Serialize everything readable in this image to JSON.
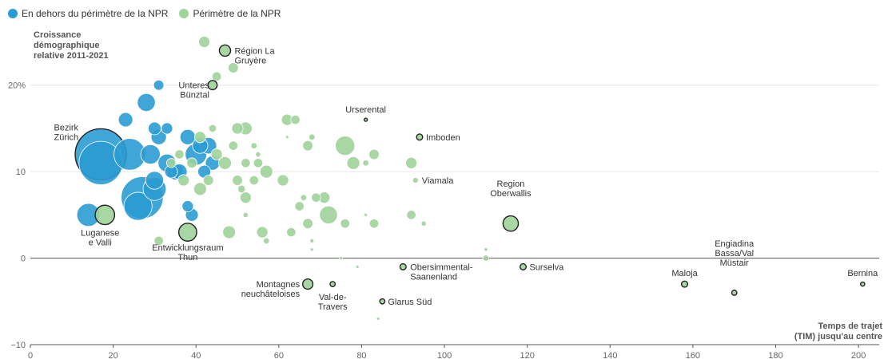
{
  "legend": {
    "outside": {
      "label": "En dehors du périmètre de la NPR",
      "color": "#2b9bd3"
    },
    "inside": {
      "label": "Périmètre de la NPR",
      "color": "#9ed39a"
    }
  },
  "colors": {
    "highlight_stroke": "#222222",
    "axis": "#555555",
    "grid": "#e6e6e6",
    "label": "#333333"
  },
  "chart_data": {
    "type": "scatter",
    "bubble": true,
    "ylabel": "Croissance démographique relative 2011-2021",
    "xlabel": "Temps de trajet (TIM) jusqu'au centre",
    "xlim": [
      0,
      205
    ],
    "ylim": [
      -10,
      28
    ],
    "xticks": [
      0,
      20,
      40,
      60,
      80,
      100,
      120,
      140,
      160,
      180,
      200
    ],
    "yticks": [
      {
        "value": 20,
        "label": "20%"
      },
      {
        "value": 10,
        "label": "10"
      },
      {
        "value": 0,
        "label": "0"
      },
      {
        "value": -10,
        "label": "−10"
      }
    ],
    "grid": "horizontal",
    "legend_position": "top-left",
    "series": [
      {
        "name": "En dehors du périmètre de la NPR",
        "color": "#2b9bd3",
        "points": [
          {
            "x": 17,
            "y": 12,
            "s": 1.0,
            "label": "Bezirk Zürich",
            "highlight": true
          },
          {
            "x": 17,
            "y": 11,
            "s": 0.85
          },
          {
            "x": 27,
            "y": 7,
            "s": 0.82
          },
          {
            "x": 24,
            "y": 12,
            "s": 0.62
          },
          {
            "x": 26,
            "y": 6,
            "s": 0.55
          },
          {
            "x": 14,
            "y": 5,
            "s": 0.45
          },
          {
            "x": 29,
            "y": 12,
            "s": 0.38
          },
          {
            "x": 30,
            "y": 8,
            "s": 0.45
          },
          {
            "x": 33,
            "y": 11,
            "s": 0.35
          },
          {
            "x": 35,
            "y": 10,
            "s": 0.32
          },
          {
            "x": 40,
            "y": 12,
            "s": 0.42
          },
          {
            "x": 36,
            "y": 10,
            "s": 0.3
          },
          {
            "x": 28,
            "y": 18,
            "s": 0.35
          },
          {
            "x": 23,
            "y": 16,
            "s": 0.28
          },
          {
            "x": 31,
            "y": 14,
            "s": 0.3
          },
          {
            "x": 30,
            "y": 15,
            "s": 0.25
          },
          {
            "x": 33,
            "y": 15,
            "s": 0.22
          },
          {
            "x": 31,
            "y": 20,
            "s": 0.2
          },
          {
            "x": 38,
            "y": 14,
            "s": 0.3
          },
          {
            "x": 41,
            "y": 13,
            "s": 0.3
          },
          {
            "x": 43,
            "y": 13,
            "s": 0.32
          },
          {
            "x": 44,
            "y": 11,
            "s": 0.28
          },
          {
            "x": 42,
            "y": 10,
            "s": 0.25
          },
          {
            "x": 34,
            "y": 10,
            "s": 0.25
          },
          {
            "x": 30,
            "y": 9,
            "s": 0.35
          },
          {
            "x": 39,
            "y": 5,
            "s": 0.25
          },
          {
            "x": 38,
            "y": 6,
            "s": 0.22
          }
        ]
      },
      {
        "name": "Périmètre de la NPR",
        "color": "#9ed39a",
        "points": [
          {
            "x": 18,
            "y": 5,
            "s": 0.38,
            "label": "Luganese e Valli",
            "highlight": true
          },
          {
            "x": 38,
            "y": 3,
            "s": 0.35,
            "label": "Entwicklungsraum Thun",
            "highlight": true
          },
          {
            "x": 47,
            "y": 24,
            "s": 0.22,
            "label": "Région La Gruyère",
            "highlight": true
          },
          {
            "x": 42,
            "y": 25,
            "s": 0.22
          },
          {
            "x": 49,
            "y": 22,
            "s": 0.2
          },
          {
            "x": 45,
            "y": 21,
            "s": 0.18
          },
          {
            "x": 44,
            "y": 20,
            "s": 0.18,
            "label": "Unteres Bünztal",
            "highlight": true
          },
          {
            "x": 81,
            "y": 16,
            "s": 0.06,
            "label": "Urserental",
            "highlight": true
          },
          {
            "x": 94,
            "y": 14,
            "s": 0.12,
            "label": "Imboden",
            "highlight": true
          },
          {
            "x": 93,
            "y": 9,
            "s": 0.11,
            "label": "Viamala",
            "highlight": false
          },
          {
            "x": 116,
            "y": 4,
            "s": 0.3,
            "label": "Region Oberwallis",
            "highlight": true
          },
          {
            "x": 67,
            "y": -3,
            "s": 0.2,
            "label": "Montagnes neuchâteloises",
            "highlight": true
          },
          {
            "x": 73,
            "y": -3,
            "s": 0.1,
            "label": "Val-de-Travers",
            "highlight": true
          },
          {
            "x": 85,
            "y": -5,
            "s": 0.1,
            "label": "Glarus Süd",
            "highlight": true
          },
          {
            "x": 90,
            "y": -1,
            "s": 0.12,
            "label": "Obersimmental-Saanenland",
            "highlight": true
          },
          {
            "x": 119,
            "y": -1,
            "s": 0.12,
            "label": "Surselva",
            "highlight": true
          },
          {
            "x": 158,
            "y": -3,
            "s": 0.12,
            "label": "Maloja",
            "highlight": true
          },
          {
            "x": 170,
            "y": -4,
            "s": 0.1,
            "label": "Engiadina Bassa/Val Müstair",
            "highlight": true
          },
          {
            "x": 201,
            "y": -3,
            "s": 0.08,
            "label": "Bernina",
            "highlight": true
          },
          {
            "x": 76,
            "y": 13,
            "s": 0.38
          },
          {
            "x": 78,
            "y": 11,
            "s": 0.25
          },
          {
            "x": 83,
            "y": 12,
            "s": 0.2
          },
          {
            "x": 81,
            "y": 11,
            "s": 0.12
          },
          {
            "x": 92,
            "y": 11,
            "s": 0.22
          },
          {
            "x": 72,
            "y": 5,
            "s": 0.35
          },
          {
            "x": 71,
            "y": 7,
            "s": 0.22
          },
          {
            "x": 76,
            "y": 4,
            "s": 0.18
          },
          {
            "x": 83,
            "y": 4,
            "s": 0.18
          },
          {
            "x": 92,
            "y": 5,
            "s": 0.18
          },
          {
            "x": 95,
            "y": 4,
            "s": 0.1
          },
          {
            "x": 81,
            "y": 5,
            "s": 0.06
          },
          {
            "x": 68,
            "y": 2,
            "s": 0.08
          },
          {
            "x": 68,
            "y": 1,
            "s": 0.05
          },
          {
            "x": 62,
            "y": 16,
            "s": 0.22
          },
          {
            "x": 64,
            "y": 16,
            "s": 0.18
          },
          {
            "x": 67,
            "y": 13,
            "s": 0.2
          },
          {
            "x": 68,
            "y": 14,
            "s": 0.12
          },
          {
            "x": 62,
            "y": 14,
            "s": 0.06
          },
          {
            "x": 57,
            "y": 10,
            "s": 0.25
          },
          {
            "x": 61,
            "y": 9,
            "s": 0.22
          },
          {
            "x": 55,
            "y": 11,
            "s": 0.18
          },
          {
            "x": 52,
            "y": 15,
            "s": 0.25
          },
          {
            "x": 50,
            "y": 15,
            "s": 0.22
          },
          {
            "x": 52,
            "y": 11,
            "s": 0.18
          },
          {
            "x": 49,
            "y": 13,
            "s": 0.18
          },
          {
            "x": 54,
            "y": 13,
            "s": 0.12
          },
          {
            "x": 55,
            "y": 12,
            "s": 0.1
          },
          {
            "x": 47,
            "y": 11,
            "s": 0.25
          },
          {
            "x": 45,
            "y": 12,
            "s": 0.22
          },
          {
            "x": 50,
            "y": 9,
            "s": 0.2
          },
          {
            "x": 52,
            "y": 7,
            "s": 0.22
          },
          {
            "x": 54,
            "y": 9,
            "s": 0.18
          },
          {
            "x": 51,
            "y": 8,
            "s": 0.15
          },
          {
            "x": 41,
            "y": 8,
            "s": 0.25
          },
          {
            "x": 43,
            "y": 9,
            "s": 0.2
          },
          {
            "x": 41,
            "y": 14,
            "s": 0.22
          },
          {
            "x": 39,
            "y": 11,
            "s": 0.2
          },
          {
            "x": 36,
            "y": 12,
            "s": 0.18
          },
          {
            "x": 37,
            "y": 9,
            "s": 0.22
          },
          {
            "x": 34,
            "y": 11,
            "s": 0.18
          },
          {
            "x": 44,
            "y": 15,
            "s": 0.15
          },
          {
            "x": 48,
            "y": 3,
            "s": 0.25
          },
          {
            "x": 56,
            "y": 3,
            "s": 0.22
          },
          {
            "x": 57,
            "y": 2,
            "s": 0.12
          },
          {
            "x": 63,
            "y": 3,
            "s": 0.18
          },
          {
            "x": 65,
            "y": 6,
            "s": 0.18
          },
          {
            "x": 67,
            "y": 4,
            "s": 0.2
          },
          {
            "x": 69,
            "y": 7,
            "s": 0.18
          },
          {
            "x": 66,
            "y": 7,
            "s": 0.12
          },
          {
            "x": 52,
            "y": 5,
            "s": 0.1
          },
          {
            "x": 31,
            "y": 2,
            "s": 0.18
          },
          {
            "x": 110,
            "y": 0,
            "s": 0.12
          },
          {
            "x": 110,
            "y": 1,
            "s": 0.07
          },
          {
            "x": 79,
            "y": -1,
            "s": 0.06
          },
          {
            "x": 84,
            "y": -7,
            "s": 0.05
          },
          {
            "x": 75,
            "y": 0,
            "s": 0.04
          }
        ]
      }
    ],
    "annotations": [
      {
        "text": "Bezirk\nZürich",
        "x": 17,
        "y": 12,
        "anchor": "end",
        "dx": -28,
        "dy": -18
      },
      {
        "text": "Luganese\ne Valli",
        "x": 18,
        "y": 5,
        "anchor": "middle",
        "dx": -6,
        "dy": 26
      },
      {
        "text": "Entwicklungsraum\nThun",
        "x": 38,
        "y": 3,
        "anchor": "middle",
        "dx": 0,
        "dy": 23
      },
      {
        "text": "Région La\nGruyère",
        "x": 47,
        "y": 24,
        "anchor": "start",
        "dx": 12,
        "dy": 4
      },
      {
        "text": "Unteres\nBünztal",
        "x": 44,
        "y": 20,
        "anchor": "end",
        "dx": -4,
        "dy": 4
      },
      {
        "text": "Urserental",
        "x": 81,
        "y": 16,
        "anchor": "middle",
        "dx": 0,
        "dy": -9
      },
      {
        "text": "Imboden",
        "x": 94,
        "y": 14,
        "anchor": "start",
        "dx": 8,
        "dy": 4
      },
      {
        "text": "Viamala",
        "x": 93,
        "y": 9,
        "anchor": "start",
        "dx": 8,
        "dy": 4
      },
      {
        "text": "Region\nOberwallis",
        "x": 116,
        "y": 4,
        "anchor": "middle",
        "dx": 0,
        "dy": -34
      },
      {
        "text": "Montagnes\nneuchâteloises",
        "x": 67,
        "y": -3,
        "anchor": "end",
        "dx": -10,
        "dy": 4
      },
      {
        "text": "Val-de-\nTravers",
        "x": 73,
        "y": -3,
        "anchor": "middle",
        "dx": 0,
        "dy": 20
      },
      {
        "text": "Glarus Süd",
        "x": 85,
        "y": -5,
        "anchor": "start",
        "dx": 7,
        "dy": 4
      },
      {
        "text": "Obersimmental-\nSaanenland",
        "x": 90,
        "y": -1,
        "anchor": "start",
        "dx": 9,
        "dy": 4
      },
      {
        "text": "Surselva",
        "x": 119,
        "y": -1,
        "anchor": "start",
        "dx": 8,
        "dy": 4
      },
      {
        "text": "Maloja",
        "x": 158,
        "y": -3,
        "anchor": "middle",
        "dx": 0,
        "dy": -10
      },
      {
        "text": "Engiadina\nBassa/Val\nMüstair",
        "x": 170,
        "y": -4,
        "anchor": "middle",
        "dx": 0,
        "dy": -34
      },
      {
        "text": "Bernina",
        "x": 201,
        "y": -3,
        "anchor": "middle",
        "dx": 0,
        "dy": -10
      }
    ]
  }
}
